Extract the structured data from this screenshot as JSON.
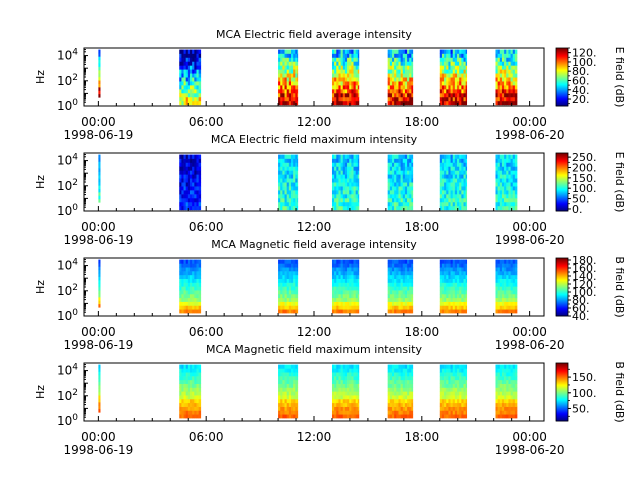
{
  "chart_data": [
    {
      "type": "heatmap",
      "title": "MCA  Electric field average intensity",
      "ylabel": "Hz",
      "y_scale": "log",
      "ylim": [
        1,
        40000
      ],
      "y_ticks": [
        {
          "base": "10",
          "exp": "0"
        },
        {
          "base": "10",
          "exp": "2"
        },
        {
          "base": "10",
          "exp": "4"
        }
      ],
      "x_ticks": [
        "00:00",
        "06:00",
        "12:00",
        "18:00",
        "00:00"
      ],
      "x_dates": [
        "1998-06-19",
        "1998-06-20"
      ],
      "colorbar_label": "E field (dB)",
      "colorbar_ticks": [
        "20.",
        "40.",
        "60.",
        "80.",
        "100.",
        "120."
      ],
      "colorbar_range": [
        5,
        130
      ],
      "mode": "e_avg",
      "data_spans_hours": [
        [
          0.0,
          0.1
        ],
        [
          4.5,
          5.7
        ],
        [
          10.0,
          11.1
        ],
        [
          13.0,
          14.5
        ],
        [
          16.1,
          17.5
        ],
        [
          19.0,
          20.5
        ],
        [
          22.1,
          23.3
        ]
      ]
    },
    {
      "type": "heatmap",
      "title": "MCA  Electric field maximum intensity",
      "ylabel": "Hz",
      "y_scale": "log",
      "ylim": [
        1,
        40000
      ],
      "y_ticks": [
        {
          "base": "10",
          "exp": "0"
        },
        {
          "base": "10",
          "exp": "2"
        },
        {
          "base": "10",
          "exp": "4"
        }
      ],
      "x_ticks": [
        "00:00",
        "06:00",
        "12:00",
        "18:00",
        "00:00"
      ],
      "x_dates": [
        "1998-06-19",
        "1998-06-20"
      ],
      "colorbar_label": "E field (dB)",
      "colorbar_ticks": [
        "0.",
        "50.",
        "100.",
        "150.",
        "200.",
        "250."
      ],
      "colorbar_range": [
        -10,
        270
      ],
      "mode": "e_max",
      "data_spans_hours": [
        [
          0.0,
          0.1
        ],
        [
          4.5,
          5.7
        ],
        [
          10.0,
          11.1
        ],
        [
          13.0,
          14.5
        ],
        [
          16.1,
          17.5
        ],
        [
          19.0,
          20.5
        ],
        [
          22.1,
          23.3
        ]
      ]
    },
    {
      "type": "heatmap",
      "title": "MCA  Magnetic field average intensity",
      "ylabel": "Hz",
      "y_scale": "log",
      "ylim": [
        1,
        40000
      ],
      "y_ticks": [
        {
          "base": "10",
          "exp": "0"
        },
        {
          "base": "10",
          "exp": "2"
        },
        {
          "base": "10",
          "exp": "4"
        }
      ],
      "x_ticks": [
        "00:00",
        "06:00",
        "12:00",
        "18:00",
        "00:00"
      ],
      "x_dates": [
        "1998-06-19",
        "1998-06-20"
      ],
      "colorbar_label": "B field (dB)",
      "colorbar_ticks": [
        "40.",
        "60.",
        "80.",
        "100.",
        "120.",
        "140.",
        "160.",
        "180."
      ],
      "colorbar_range": [
        40,
        185
      ],
      "mode": "b_avg",
      "data_spans_hours": [
        [
          0.0,
          0.1
        ],
        [
          4.5,
          5.7
        ],
        [
          10.0,
          11.1
        ],
        [
          13.0,
          14.5
        ],
        [
          16.1,
          17.5
        ],
        [
          19.0,
          20.5
        ],
        [
          22.1,
          23.3
        ]
      ]
    },
    {
      "type": "heatmap",
      "title": "MCA  Magnetic field maximum intensity",
      "ylabel": "Hz",
      "y_scale": "log",
      "ylim": [
        1,
        40000
      ],
      "y_ticks": [
        {
          "base": "10",
          "exp": "0"
        },
        {
          "base": "10",
          "exp": "2"
        },
        {
          "base": "10",
          "exp": "4"
        }
      ],
      "x_ticks": [
        "00:00",
        "06:00",
        "12:00",
        "18:00",
        "00:00"
      ],
      "x_dates": [
        "1998-06-19",
        "1998-06-20"
      ],
      "colorbar_label": "B field (dB)",
      "colorbar_ticks": [
        "50.",
        "100.",
        "150."
      ],
      "colorbar_range": [
        10,
        195
      ],
      "mode": "b_max",
      "data_spans_hours": [
        [
          0.0,
          0.1
        ],
        [
          4.5,
          5.7
        ],
        [
          10.0,
          11.1
        ],
        [
          13.0,
          14.5
        ],
        [
          16.1,
          17.5
        ],
        [
          19.0,
          20.5
        ],
        [
          22.1,
          23.3
        ]
      ]
    }
  ]
}
